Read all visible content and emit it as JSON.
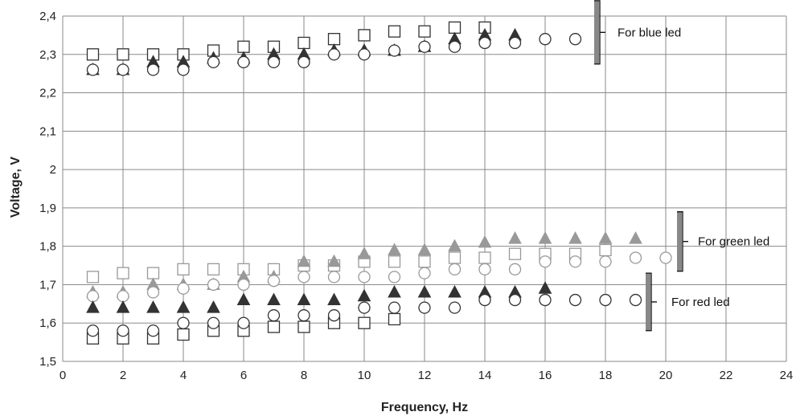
{
  "chart_data": {
    "type": "scatter",
    "title": "",
    "xlabel": "Frequency, Hz",
    "ylabel": "Voltage, V",
    "xlim": [
      0,
      24
    ],
    "ylim": [
      1.5,
      2.4
    ],
    "x_ticks": [
      "0",
      "2",
      "4",
      "6",
      "8",
      "10",
      "12",
      "14",
      "16",
      "18",
      "20",
      "22",
      "24"
    ],
    "y_ticks": [
      "1,5",
      "1,6",
      "1,7",
      "1,8",
      "1,9",
      "2",
      "2,1",
      "2,2",
      "2,3",
      "2,4"
    ],
    "grid": true,
    "legend": "none",
    "groups": [
      {
        "label": "For blue led",
        "color": "#333333",
        "bracket_range": [
          2.275,
          2.44
        ],
        "series": [
          {
            "marker": "square",
            "x": [
              1,
              2,
              3,
              4,
              5,
              6,
              7,
              8,
              9,
              10,
              11,
              12,
              13,
              14
            ],
            "y": [
              2.3,
              2.3,
              2.3,
              2.3,
              2.31,
              2.32,
              2.32,
              2.33,
              2.34,
              2.35,
              2.36,
              2.36,
              2.37,
              2.37
            ]
          },
          {
            "marker": "triangle",
            "x": [
              1,
              2,
              3,
              4,
              5,
              6,
              7,
              8,
              9,
              10,
              11,
              12,
              13,
              14,
              15
            ],
            "y": [
              2.26,
              2.26,
              2.28,
              2.28,
              2.29,
              2.29,
              2.3,
              2.3,
              2.31,
              2.31,
              2.31,
              2.32,
              2.34,
              2.35,
              2.35
            ]
          },
          {
            "marker": "circle",
            "x": [
              1,
              2,
              3,
              4,
              5,
              6,
              7,
              8,
              9,
              10,
              11,
              12,
              13,
              14,
              15,
              16,
              17
            ],
            "y": [
              2.26,
              2.26,
              2.26,
              2.26,
              2.28,
              2.28,
              2.28,
              2.28,
              2.3,
              2.3,
              2.31,
              2.32,
              2.32,
              2.33,
              2.33,
              2.34,
              2.34
            ]
          }
        ]
      },
      {
        "label": "For green led",
        "color": "#999999",
        "bracket_range": [
          1.735,
          1.89
        ],
        "series": [
          {
            "marker": "square",
            "x": [
              1,
              2,
              3,
              4,
              5,
              6,
              7,
              8,
              9,
              10,
              11,
              12,
              13,
              14,
              15,
              16,
              17,
              18
            ],
            "y": [
              1.72,
              1.73,
              1.73,
              1.74,
              1.74,
              1.74,
              1.74,
              1.75,
              1.75,
              1.76,
              1.76,
              1.76,
              1.77,
              1.77,
              1.78,
              1.78,
              1.78,
              1.79
            ]
          },
          {
            "marker": "triangle",
            "x": [
              1,
              2,
              3,
              4,
              5,
              6,
              7,
              8,
              9,
              10,
              11,
              12,
              13,
              14,
              15,
              16,
              17,
              18,
              19
            ],
            "y": [
              1.68,
              1.68,
              1.7,
              1.7,
              1.7,
              1.72,
              1.72,
              1.76,
              1.76,
              1.78,
              1.79,
              1.79,
              1.8,
              1.81,
              1.82,
              1.82,
              1.82,
              1.82,
              1.82
            ]
          },
          {
            "marker": "circle",
            "x": [
              1,
              2,
              3,
              4,
              5,
              6,
              7,
              8,
              9,
              10,
              11,
              12,
              13,
              14,
              15,
              16,
              17,
              18,
              19,
              20
            ],
            "y": [
              1.67,
              1.67,
              1.68,
              1.69,
              1.7,
              1.7,
              1.71,
              1.72,
              1.72,
              1.72,
              1.72,
              1.73,
              1.74,
              1.74,
              1.74,
              1.76,
              1.76,
              1.76,
              1.77,
              1.77
            ]
          }
        ]
      },
      {
        "label": "For red led",
        "color": "#333333",
        "bracket_range": [
          1.58,
          1.73
        ],
        "series": [
          {
            "marker": "square",
            "x": [
              1,
              2,
              3,
              4,
              5,
              6,
              7,
              8,
              9,
              10,
              11
            ],
            "y": [
              1.56,
              1.56,
              1.56,
              1.57,
              1.58,
              1.58,
              1.59,
              1.59,
              1.6,
              1.6,
              1.61
            ]
          },
          {
            "marker": "triangle",
            "x": [
              1,
              2,
              3,
              4,
              5,
              6,
              7,
              8,
              9,
              10,
              11,
              12,
              13,
              14,
              15,
              16
            ],
            "y": [
              1.64,
              1.64,
              1.64,
              1.64,
              1.64,
              1.66,
              1.66,
              1.66,
              1.66,
              1.67,
              1.68,
              1.68,
              1.68,
              1.68,
              1.68,
              1.69
            ]
          },
          {
            "marker": "circle",
            "x": [
              1,
              2,
              3,
              4,
              5,
              6,
              7,
              8,
              9,
              10,
              11,
              12,
              13,
              14,
              15,
              16,
              17,
              18,
              19
            ],
            "y": [
              1.58,
              1.58,
              1.58,
              1.6,
              1.6,
              1.6,
              1.62,
              1.62,
              1.62,
              1.64,
              1.64,
              1.64,
              1.64,
              1.66,
              1.66,
              1.66,
              1.66,
              1.66,
              1.66
            ]
          }
        ]
      }
    ]
  }
}
